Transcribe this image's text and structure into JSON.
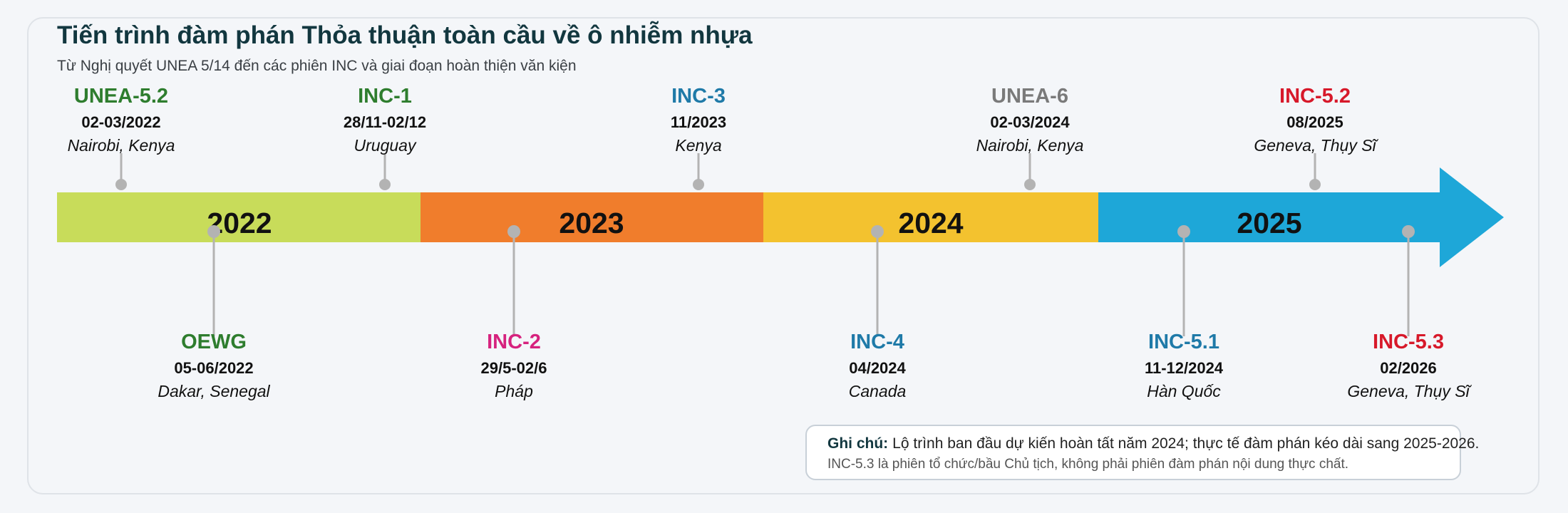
{
  "title": "Tiến trình đàm phán Thỏa thuận toàn cầu về ô nhiễm nhựa",
  "subtitle": "Từ Nghị quyết UNEA 5/14 đến các phiên INC và giai đoạn hoàn thiện văn kiện",
  "segments": [
    {
      "label": "2022",
      "color": "#c8dc5a"
    },
    {
      "label": "2023",
      "color": "#f07d2c"
    },
    {
      "label": "2024",
      "color": "#f3c22f"
    },
    {
      "label": "2025",
      "color": "#1ea7d8"
    }
  ],
  "events_above": [
    {
      "name": "UNEA-5.2",
      "date": "02-03/2022",
      "place": "Nairobi, Kenya",
      "color": "#2e7d2e"
    },
    {
      "name": "INC-1",
      "date": "28/11-02/12",
      "place": "Uruguay",
      "color": "#2e7d2e"
    },
    {
      "name": "INC-3",
      "date": "11/2023",
      "place": "Kenya",
      "color": "#1f7aa8"
    },
    {
      "name": "UNEA-6",
      "date": "02-03/2024",
      "place": "Nairobi, Kenya",
      "color": "#7a7a7a"
    },
    {
      "name": "INC-5.2",
      "date": "08/2025",
      "place": "Geneva, Thụy Sĩ",
      "color": "#d7192a"
    }
  ],
  "events_below": [
    {
      "name": "OEWG",
      "date": "05-06/2022",
      "place": "Dakar, Senegal",
      "color": "#2e7d2e"
    },
    {
      "name": "INC-2",
      "date": "29/5-02/6",
      "place": "Pháp",
      "color": "#d6227e"
    },
    {
      "name": "INC-4",
      "date": "04/2024",
      "place": "Canada",
      "color": "#1f7aa8"
    },
    {
      "name": "INC-5.1",
      "date": "11-12/2024",
      "place": "Hàn Quốc",
      "color": "#1f7aa8"
    },
    {
      "name": "INC-5.3",
      "date": "02/2026",
      "place": "Geneva, Thụy Sĩ",
      "color": "#d7192a"
    }
  ],
  "note": {
    "label": "Ghi chú:",
    "line1": "Lộ trình ban đầu dự kiến hoàn tất năm 2024; thực tế đàm phán kéo dài sang 2025-2026.",
    "line2": "INC-5.3 là phiên tổ chức/bầu Chủ tịch, không phải phiên đàm phán nội dung thực chất."
  }
}
